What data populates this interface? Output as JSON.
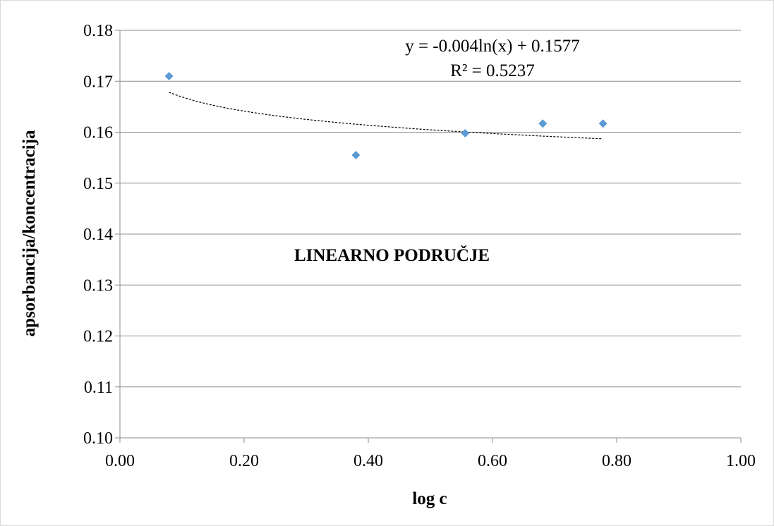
{
  "chart_data": {
    "type": "scatter",
    "title": "",
    "xlabel": "log c",
    "ylabel": "apsorbancija/koncentracija",
    "xlim": [
      0.0,
      1.0
    ],
    "ylim": [
      0.1,
      0.18
    ],
    "x_ticks": [
      "0.00",
      "0.20",
      "0.40",
      "0.60",
      "0.80",
      "1.00"
    ],
    "y_ticks": [
      "0.10",
      "0.11",
      "0.12",
      "0.13",
      "0.14",
      "0.15",
      "0.16",
      "0.17",
      "0.18"
    ],
    "grid": "horizontal",
    "marker": "diamond",
    "marker_color": "#5b9bd5",
    "trendline_color": "#000000",
    "series": [
      {
        "x": [
          0.079,
          0.38,
          0.556,
          0.681,
          0.778
        ],
        "y": [
          0.171,
          0.1555,
          0.1598,
          0.1617,
          0.1617
        ]
      }
    ],
    "trendline": {
      "type": "logarithmic",
      "a": -0.004,
      "b": 0.1577,
      "x_range": [
        0.079,
        0.778
      ],
      "equation": "y = -0.004ln(x) + 0.1577",
      "r_squared": "R² = 0.5237"
    },
    "annotation": "LINEARNO PODRUČJE"
  }
}
